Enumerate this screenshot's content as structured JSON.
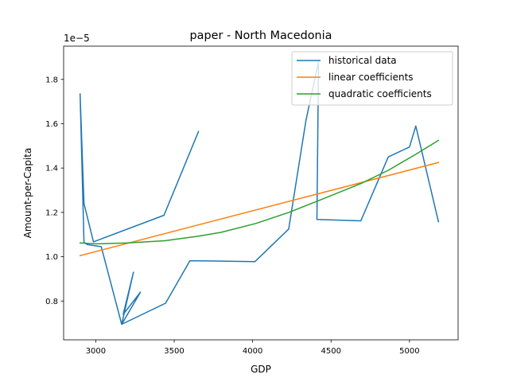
{
  "chart_data": {
    "type": "line",
    "title": "paper - North Macedonia",
    "xlabel": "GDP",
    "ylabel": "Amount-per-Capita",
    "y_offset_label": "1e−5",
    "xlim": [
      2795,
      5310
    ],
    "ylim": [
      0.625,
      1.95
    ],
    "xticks": [
      3000,
      3500,
      4000,
      4500,
      5000
    ],
    "xtick_labels": [
      "3000",
      "3500",
      "4000",
      "4500",
      "5000"
    ],
    "yticks": [
      0.8,
      1.0,
      1.2,
      1.4,
      1.6,
      1.8
    ],
    "ytick_labels": [
      "0.8",
      "1.0",
      "1.2",
      "1.4",
      "1.6",
      "1.8"
    ],
    "grid": false,
    "legend_position": "top-right",
    "series": [
      {
        "name": "historical data",
        "color": "#1f77b4",
        "x": [
          3655,
          3435,
          2985,
          2925,
          2900,
          2925,
          2945,
          3035,
          3165,
          3240,
          3175,
          3285,
          3165,
          3445,
          3600,
          4015,
          4230,
          4340,
          4420,
          4410,
          4690,
          4865,
          5000,
          5040,
          5185
        ],
        "y": [
          1.565,
          1.187,
          1.067,
          1.24,
          1.735,
          1.065,
          1.055,
          1.045,
          0.695,
          0.93,
          0.74,
          0.84,
          0.695,
          0.79,
          0.982,
          0.978,
          1.125,
          1.615,
          1.88,
          1.168,
          1.162,
          1.45,
          1.495,
          1.59,
          1.158
        ]
      },
      {
        "name": "linear coefficients",
        "color": "#ff7f0e",
        "x": [
          2900,
          5185
        ],
        "y": [
          1.005,
          1.425
        ]
      },
      {
        "name": "quadratic coefficients",
        "color": "#2ca02c",
        "x": [
          2900,
          3000,
          3200,
          3440,
          3650,
          3800,
          4020,
          4230,
          4410,
          4690,
          4865,
          5040,
          5185
        ],
        "y": [
          1.062,
          1.058,
          1.062,
          1.072,
          1.092,
          1.11,
          1.15,
          1.2,
          1.25,
          1.33,
          1.39,
          1.462,
          1.525
        ]
      }
    ]
  }
}
